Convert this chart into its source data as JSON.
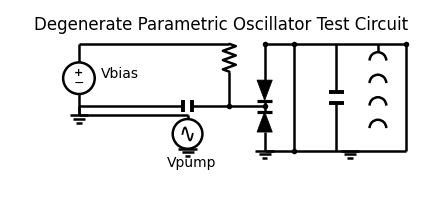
{
  "title": "Degenerate Parametric Oscillator Test Circuit",
  "title_fontsize": 12,
  "bg_color": "#ffffff",
  "line_color": "#000000",
  "line_width": 1.8,
  "fig_width": 4.42,
  "fig_height": 2.14,
  "dpi": 100
}
